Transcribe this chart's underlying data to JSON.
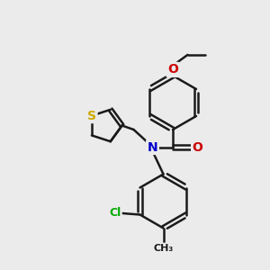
{
  "background_color": "#ebebeb",
  "line_color": "#1a1a1a",
  "bond_width": 1.8,
  "atom_colors": {
    "O": "#cc0000",
    "N": "#0000cc",
    "S": "#ccaa00",
    "Cl": "#00aa00",
    "C": "#1a1a1a"
  },
  "font_size": 9,
  "figsize": [
    3.0,
    3.0
  ],
  "dpi": 100,
  "xlim": [
    0,
    10
  ],
  "ylim": [
    0,
    10
  ]
}
